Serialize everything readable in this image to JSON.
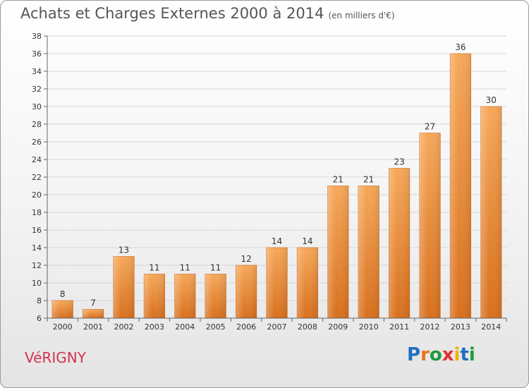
{
  "header": {
    "title": "Achats et Charges Externes 2000 à 2014",
    "unit": "(en milliers d'€)"
  },
  "commune": "VéRIGNY",
  "logo": {
    "text": "Proxiti",
    "colors": [
      "#1f6fbf",
      "#e8731c",
      "#1f9a3a",
      "#e03030",
      "#f0b400",
      "#1f6fbf",
      "#1f9a3a"
    ]
  },
  "chart_data": {
    "type": "bar",
    "categories": [
      "2000",
      "2001",
      "2002",
      "2003",
      "2004",
      "2005",
      "2006",
      "2007",
      "2008",
      "2009",
      "2010",
      "2011",
      "2012",
      "2013",
      "2014"
    ],
    "values": [
      8,
      7,
      13,
      11,
      11,
      11,
      12,
      14,
      14,
      21,
      21,
      23,
      27,
      36,
      30
    ],
    "ylim": [
      6,
      38
    ],
    "yticks": [
      6,
      8,
      10,
      12,
      14,
      16,
      18,
      20,
      22,
      24,
      26,
      28,
      30,
      32,
      34,
      36,
      38
    ],
    "bar_color": "#e8882e",
    "grid": true
  }
}
